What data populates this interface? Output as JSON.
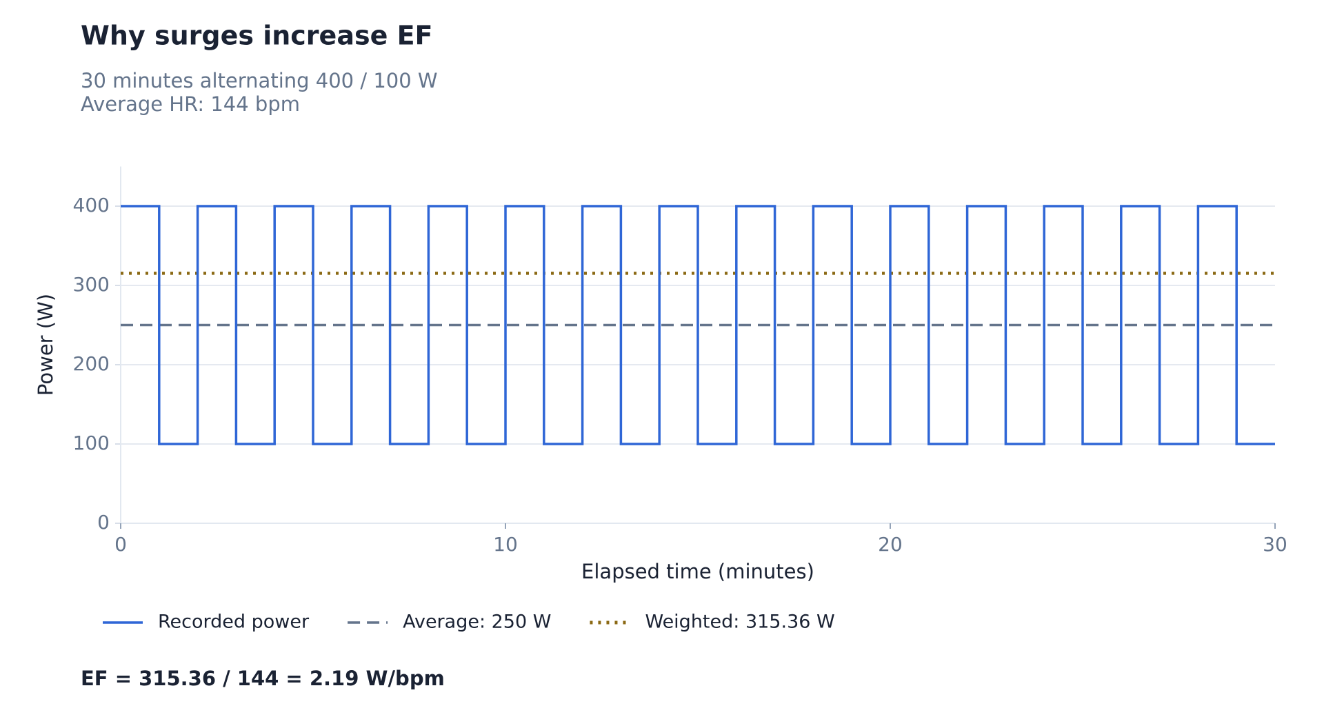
{
  "chart_data": {
    "type": "step",
    "title": "Why surges increase EF",
    "subtitle": [
      "30 minutes alternating 400 / 100 W",
      "Average HR: 144 bpm"
    ],
    "x_label": "Elapsed time (minutes)",
    "y_label": "Power (W)",
    "x": [
      0,
      1,
      2,
      3,
      4,
      5,
      6,
      7,
      8,
      9,
      10,
      11,
      12,
      13,
      14,
      15,
      16,
      17,
      18,
      19,
      20,
      21,
      22,
      23,
      24,
      25,
      26,
      27,
      28,
      29,
      30
    ],
    "series": [
      {
        "name": "Recorded power",
        "color": "#2f66d6",
        "values": [
          400,
          100,
          400,
          100,
          400,
          100,
          400,
          100,
          400,
          100,
          400,
          100,
          400,
          100,
          400,
          100,
          400,
          100,
          400,
          100,
          400,
          100,
          400,
          100,
          400,
          100,
          400,
          100,
          400,
          100,
          100
        ]
      }
    ],
    "reference_lines": [
      {
        "name": "Average: 250 W",
        "value": 250,
        "color": "#64748b",
        "style": "dashed"
      },
      {
        "name": "Weighted: 315.36 W",
        "value": 315.36,
        "color": "#8b6914",
        "style": "dotted"
      }
    ],
    "xlim": [
      0,
      30
    ],
    "xticks": [
      0,
      10,
      20,
      30
    ],
    "ylim": [
      0,
      450
    ],
    "yticks": [
      0,
      100,
      200,
      300,
      400
    ],
    "grid": true,
    "legend": "bottom",
    "annotation": "EF = 315.36 / 144 = 2.19 W/bpm"
  }
}
